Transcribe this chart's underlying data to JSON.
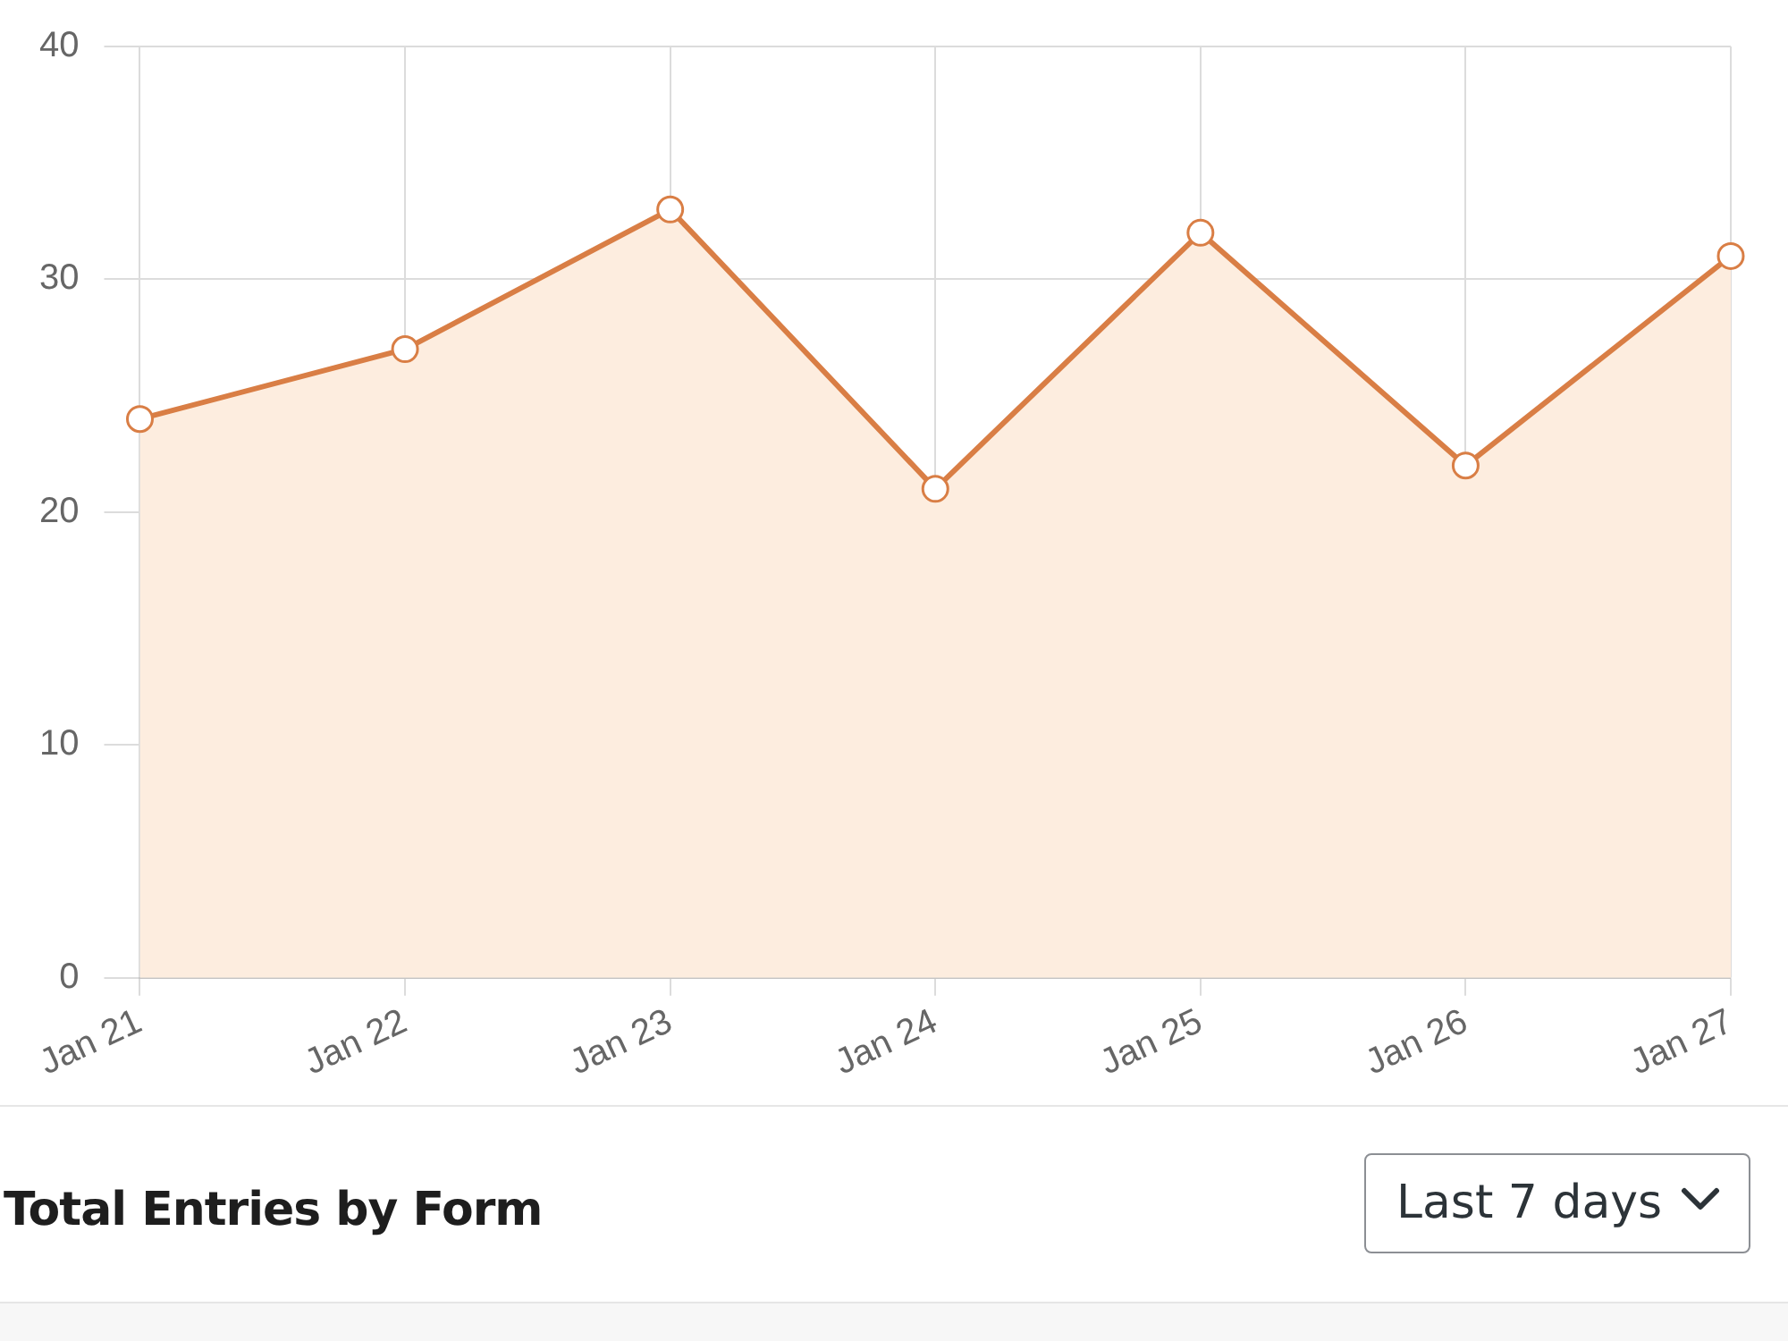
{
  "chart_data": {
    "type": "area",
    "categories": [
      "Jan 21",
      "Jan 22",
      "Jan 23",
      "Jan 24",
      "Jan 25",
      "Jan 26",
      "Jan 27"
    ],
    "series": [
      {
        "color": "#d97e45",
        "values": [
          24,
          27,
          33,
          21,
          32,
          22,
          31
        ]
      }
    ],
    "ylim": [
      0,
      40
    ],
    "yticks": [
      0,
      10,
      20,
      30,
      40
    ],
    "grid": true,
    "legend": false,
    "marker": "circle",
    "line_style": "solid",
    "annotations": [
      "Total Entries by Form",
      "Last 7 days"
    ]
  }
}
